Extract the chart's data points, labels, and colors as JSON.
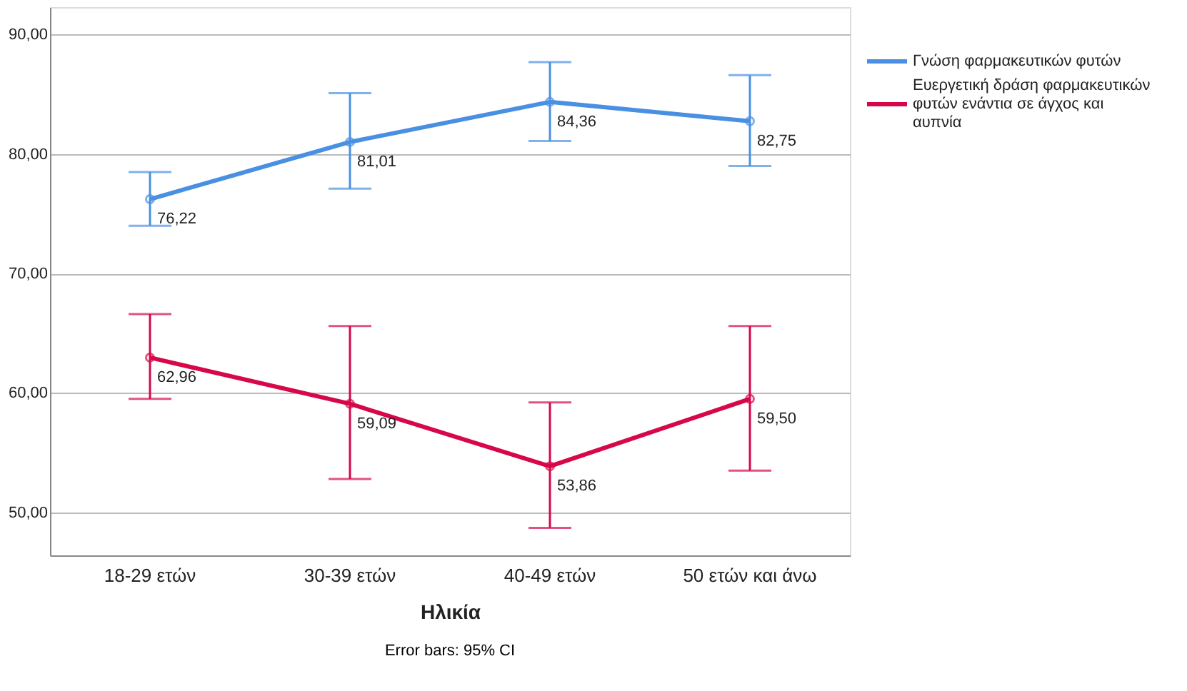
{
  "chart_data": {
    "type": "line",
    "xlabel": "Ηλικία",
    "categories": [
      "18-29 ετών",
      "30-39 ετών",
      "40-49 ετών",
      "50 ετών και άνω"
    ],
    "series": [
      {
        "name": "Γνώση φαρμακευτικών φυτών",
        "color": "#4a90e2",
        "values": [
          76.22,
          81.01,
          84.36,
          82.75
        ],
        "errors": [
          [
            74.0,
            78.5
          ],
          [
            77.1,
            85.1
          ],
          [
            81.1,
            87.7
          ],
          [
            79.0,
            86.6
          ]
        ],
        "value_labels": [
          "76,22",
          "81,01",
          "84,36",
          "82,75"
        ]
      },
      {
        "name": "Ευεργετική δράση φαρμακευτικών φυτών ενάντια σε άγχος και αυπνία",
        "color": "#d6084a",
        "values": [
          62.96,
          59.09,
          53.86,
          59.5
        ],
        "errors": [
          [
            59.5,
            66.6
          ],
          [
            52.8,
            65.6
          ],
          [
            48.7,
            59.2
          ],
          [
            53.5,
            65.6
          ]
        ],
        "value_labels": [
          "62,96",
          "59,09",
          "53,86",
          "59,50"
        ]
      }
    ],
    "ylim": [
      46.4,
      92.3
    ],
    "yticks": [
      {
        "value": 50,
        "label": "50,00"
      },
      {
        "value": 60,
        "label": "60,00"
      },
      {
        "value": 70,
        "label": "70,00"
      },
      {
        "value": 80,
        "label": "80,00"
      },
      {
        "value": 90,
        "label": "90,00"
      }
    ],
    "grid": "y",
    "legend": "top right",
    "marker": "circle",
    "line_style": "solid",
    "annotations": [
      "Error bars: 95% CI"
    ]
  }
}
